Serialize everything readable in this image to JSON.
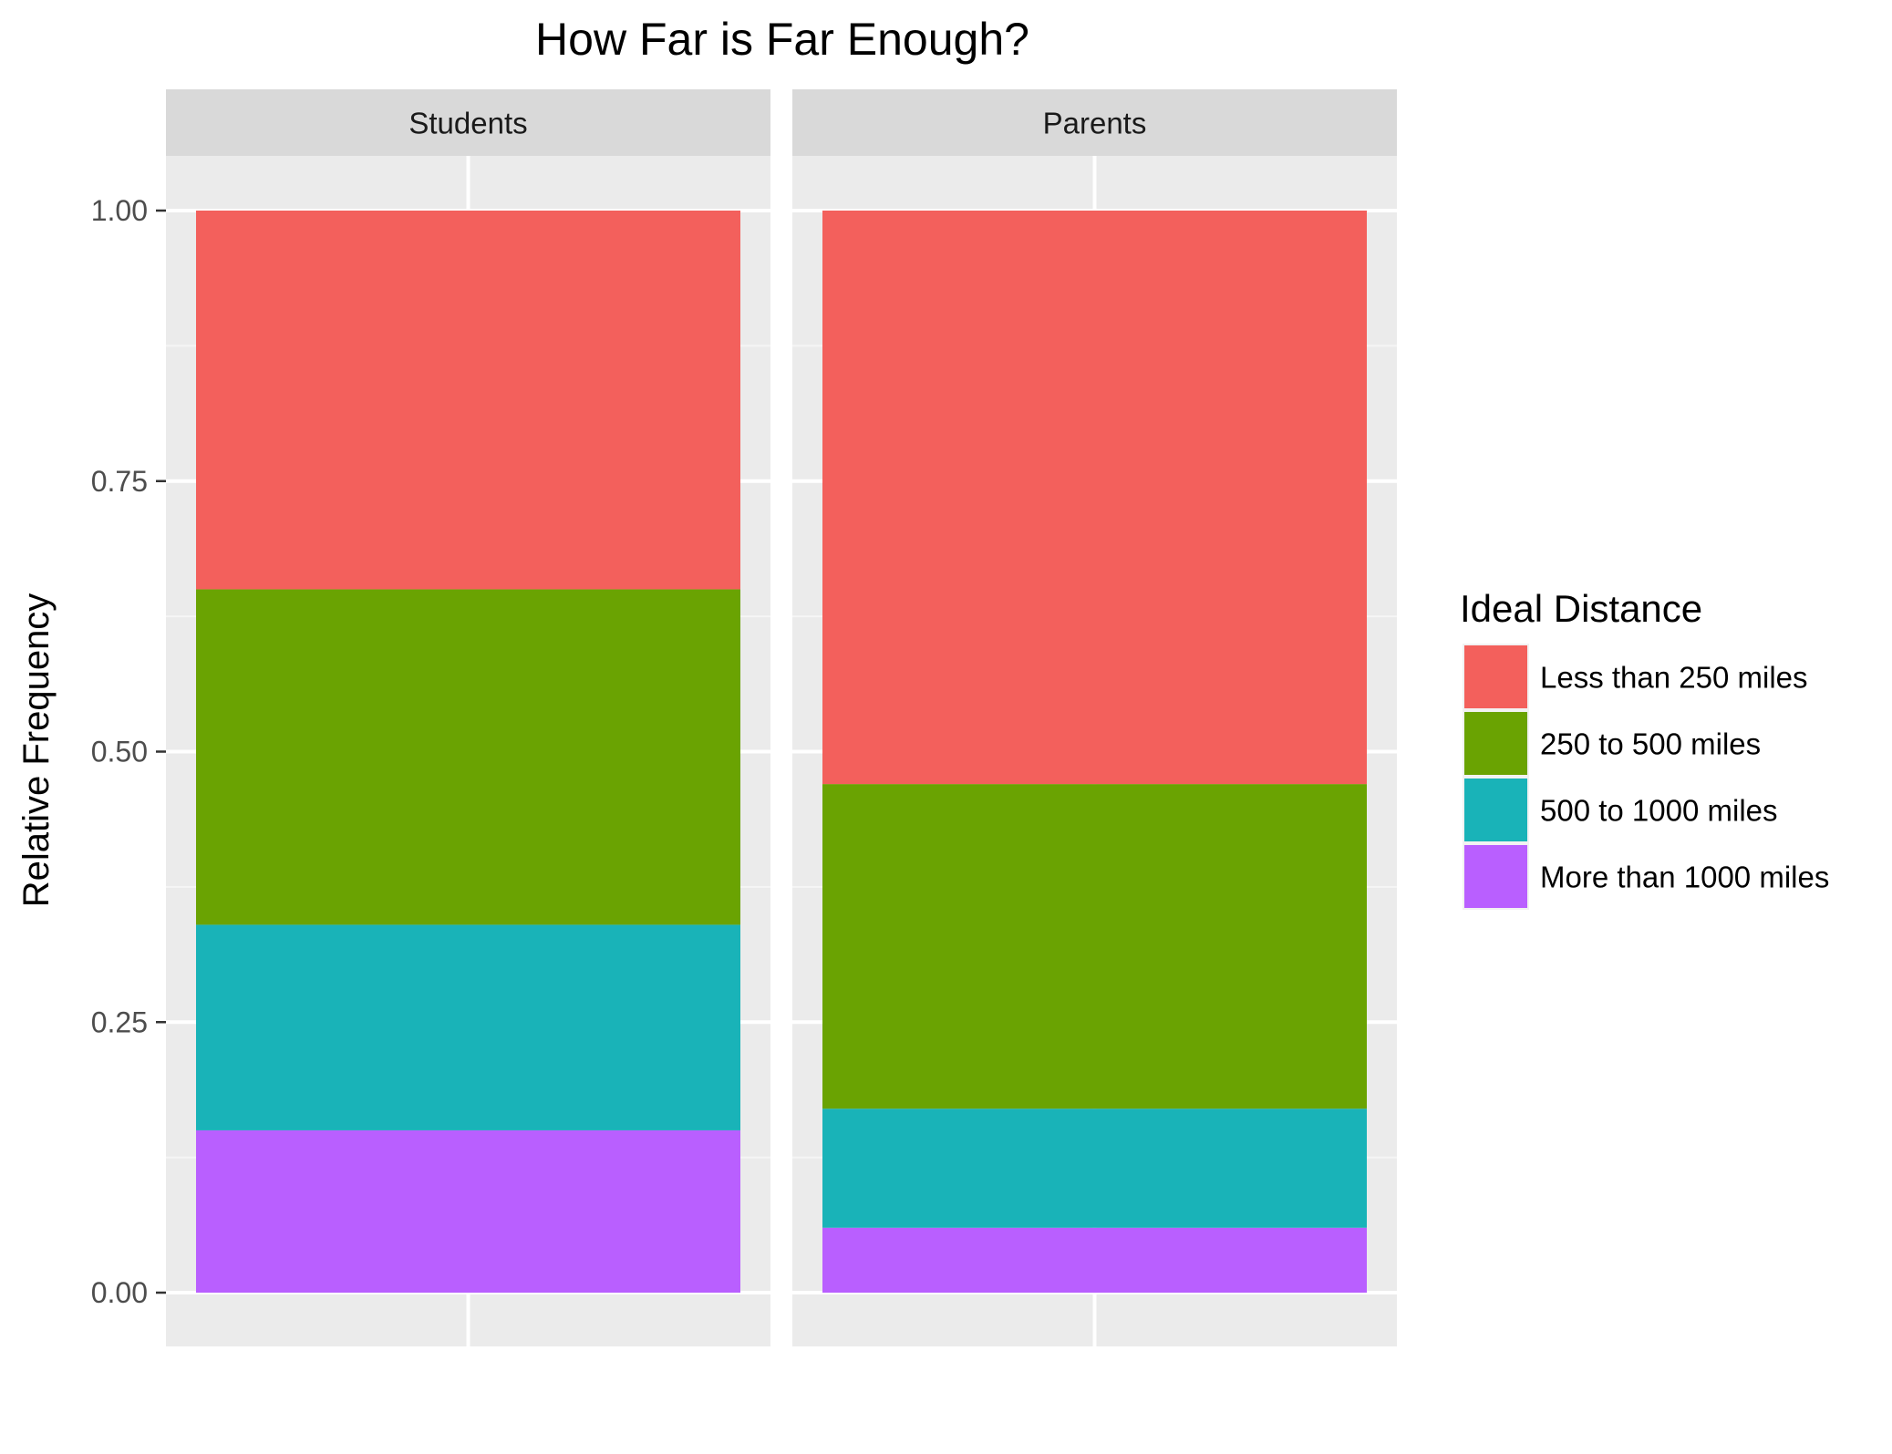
{
  "chart_data": {
    "type": "bar",
    "stacked": true,
    "title": "How Far is Far Enough?",
    "xlabel": "",
    "ylabel": "Relative Frequency",
    "ylim": [
      0,
      1
    ],
    "yticks": [
      "0.00",
      "0.25",
      "0.50",
      "0.75",
      "1.00"
    ],
    "grid": true,
    "facets": [
      "Students",
      "Parents"
    ],
    "legend": {
      "title": "Ideal Distance",
      "position": "right"
    },
    "series": [
      {
        "name": "More than 1000 miles",
        "color": "#B95FFF",
        "values": [
          0.15,
          0.06
        ]
      },
      {
        "name": "500 to 1000 miles",
        "color": "#19B3B8",
        "values": [
          0.19,
          0.11
        ]
      },
      {
        "name": "250 to 500 miles",
        "color": "#6AA302",
        "values": [
          0.31,
          0.3
        ]
      },
      {
        "name": "Less than 250 miles",
        "color": "#F3605C",
        "values": [
          0.35,
          0.53
        ]
      }
    ],
    "legend_order": [
      "Less than 250 miles",
      "250 to 500 miles",
      "500 to 1000 miles",
      "More than 1000 miles"
    ]
  }
}
